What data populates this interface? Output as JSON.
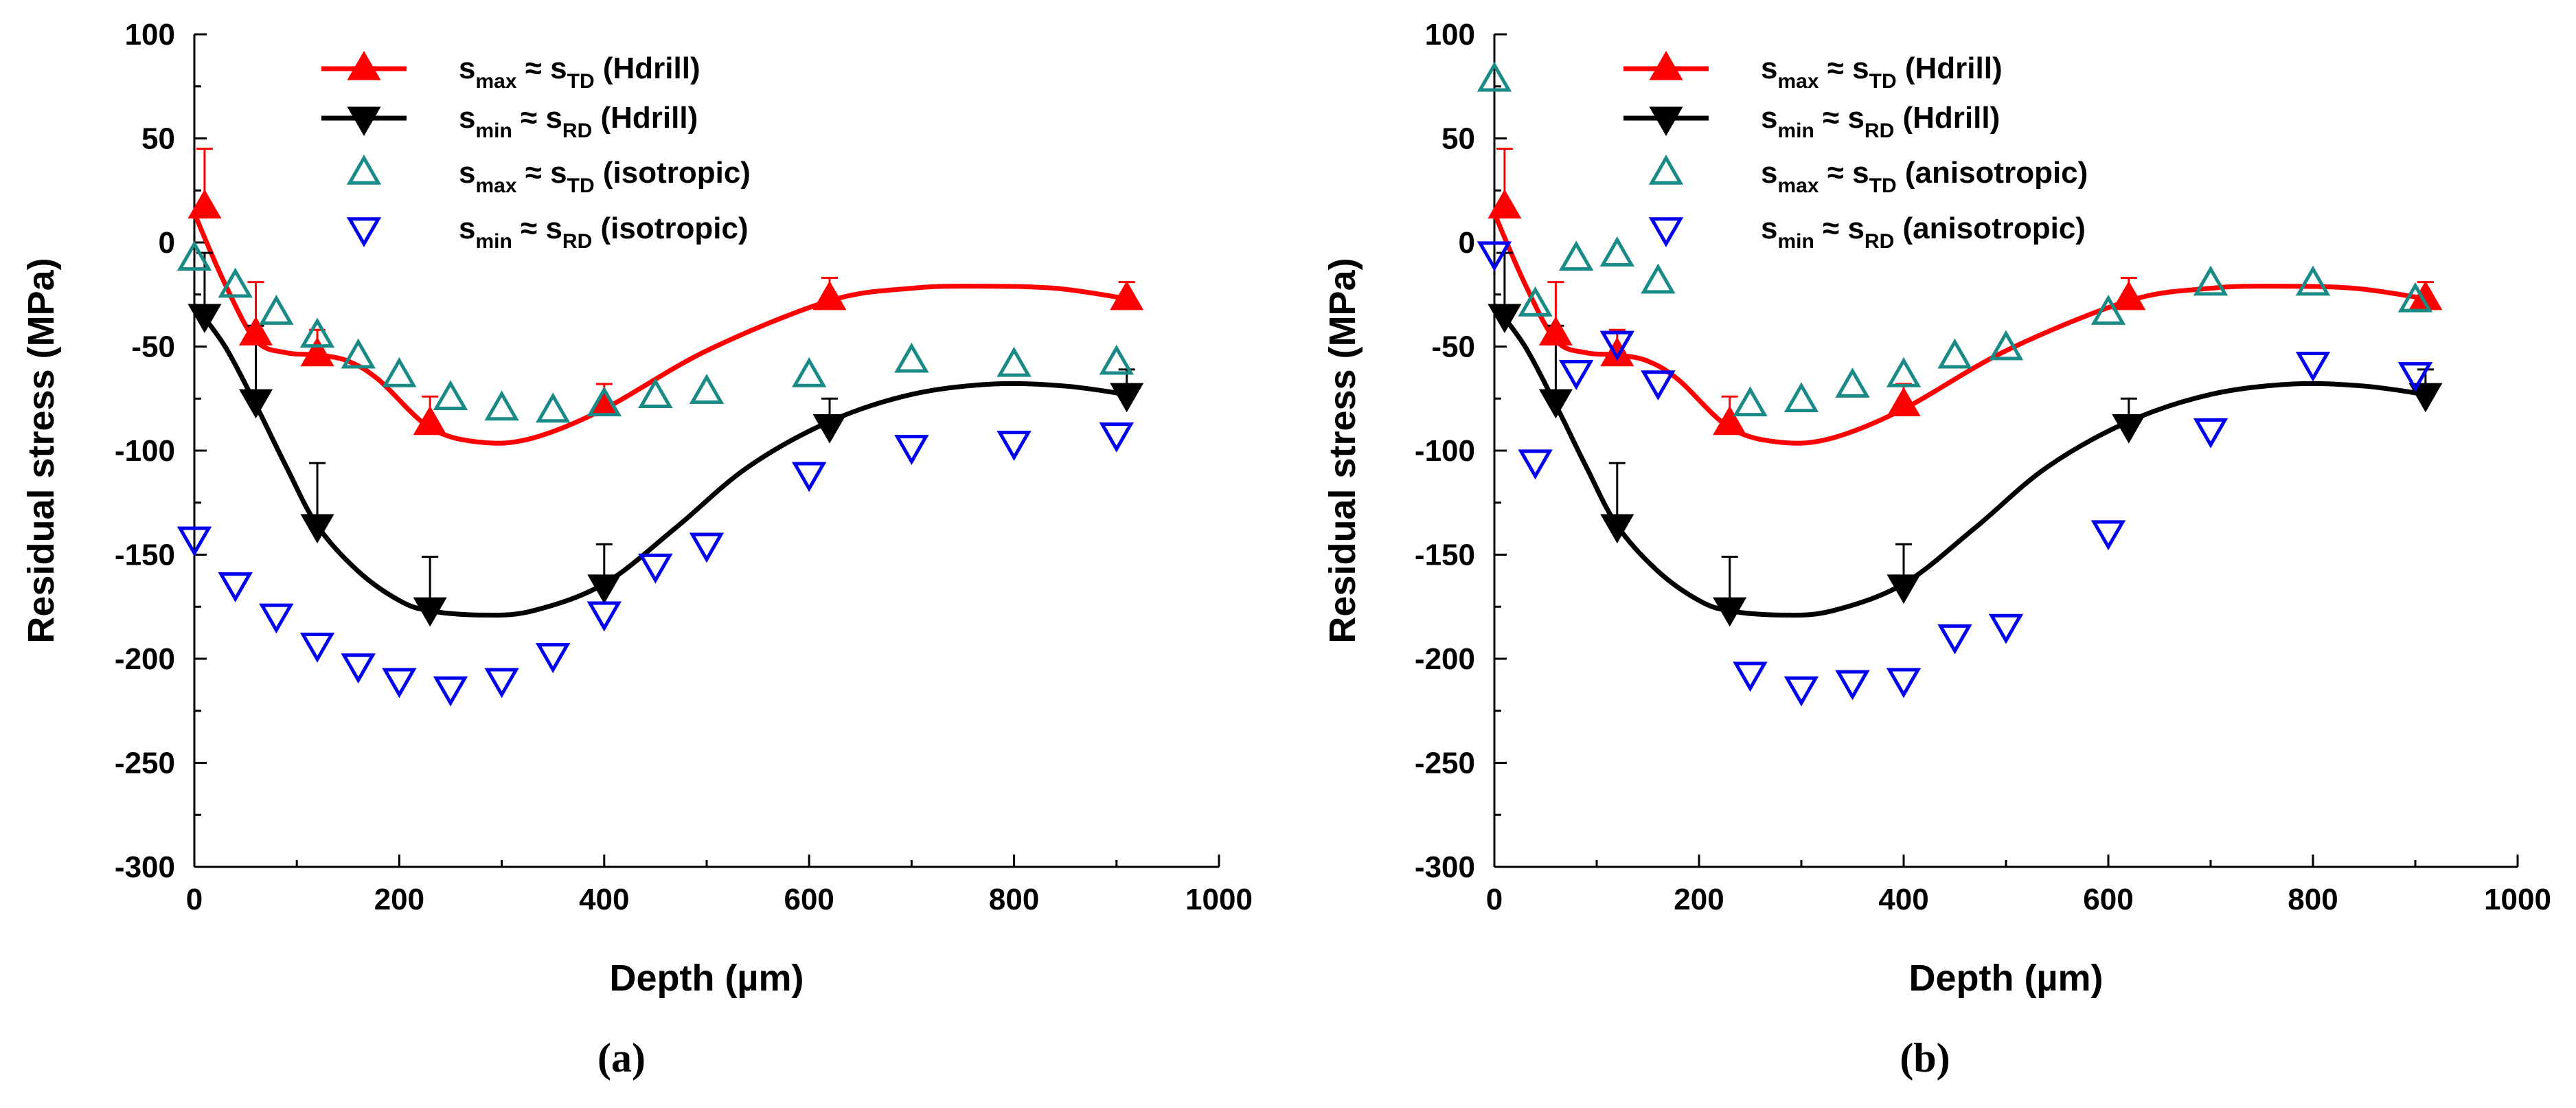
{
  "chart_data": [
    {
      "type": "scatter",
      "caption": "(a)",
      "xlabel": "Depth (µm)",
      "ylabel": "Residual stress (MPa)",
      "xlim": [
        0,
        1000
      ],
      "ylim": [
        -300,
        100
      ],
      "x_ticks": [
        0,
        200,
        400,
        600,
        800,
        1000
      ],
      "y_ticks": [
        100,
        50,
        0,
        -50,
        -100,
        -150,
        -200,
        -250,
        -300
      ],
      "legend_position": "top-center",
      "series": [
        {
          "name": "S_max ≈ S_TD (Hdrill)",
          "legend": {
            "s": "s",
            "sub1": "max",
            "approx": "≈",
            "sub2": "TD",
            "label": "(Hdrill)"
          },
          "marker": "triangle-up",
          "filled": true,
          "color": "#ff0000",
          "line": true,
          "x": [
            10,
            60,
            120,
            230,
            400,
            620,
            910
          ],
          "y": [
            17,
            -44,
            -54,
            -87,
            -78,
            -27,
            -27
          ],
          "err": [
            28,
            25,
            12,
            13,
            10,
            10,
            8
          ],
          "curve_x": [
            0,
            30,
            60,
            90,
            120,
            150,
            180,
            230,
            280,
            330,
            400,
            500,
            620,
            700,
            760,
            840,
            910
          ],
          "curve_y": [
            14,
            -20,
            -47,
            -53,
            -54,
            -57,
            -66,
            -89,
            -96,
            -94,
            -80,
            -52,
            -28,
            -22,
            -21,
            -22,
            -27
          ]
        },
        {
          "name": "S_min ≈ S_RD (Hdrill)",
          "legend": {
            "s": "s",
            "sub1": "min",
            "approx": "≈",
            "sub2": "RD",
            "label": "(Hdrill)"
          },
          "marker": "triangle-down",
          "filled": true,
          "color": "#000000",
          "line": true,
          "x": [
            10,
            60,
            120,
            230,
            400,
            620,
            910
          ],
          "y": [
            -35,
            -76,
            -136,
            -176,
            -165,
            -88,
            -73
          ],
          "err": [
            30,
            36,
            30,
            25,
            20,
            13,
            12
          ],
          "curve_x": [
            0,
            30,
            60,
            90,
            120,
            160,
            200,
            230,
            280,
            330,
            400,
            470,
            540,
            620,
            700,
            780,
            850,
            910
          ],
          "curve_y": [
            -30,
            -50,
            -78,
            -108,
            -136,
            -158,
            -172,
            -177,
            -179,
            -177,
            -164,
            -137,
            -108,
            -86,
            -73,
            -68,
            -69,
            -73
          ]
        },
        {
          "name": "S_max ≈ S_TD (isotropic)",
          "legend": {
            "s": "s",
            "sub1": "max",
            "approx": "≈",
            "sub2": "TD",
            "label": "(isotropic)"
          },
          "marker": "triangle-up",
          "filled": false,
          "color": "#1a8a86",
          "line": false,
          "x": [
            0,
            40,
            80,
            120,
            160,
            200,
            250,
            300,
            350,
            400,
            450,
            500,
            600,
            700,
            800,
            900
          ],
          "y": [
            -8,
            -21,
            -34,
            -45,
            -55,
            -64,
            -75,
            -80,
            -81,
            -78,
            -74,
            -72,
            -64,
            -57,
            -59,
            -58
          ]
        },
        {
          "name": "S_min ≈ S_RD (isotropic)",
          "legend": {
            "s": "s",
            "sub1": "min",
            "approx": "≈",
            "sub2": "RD",
            "label": "(isotropic)"
          },
          "marker": "triangle-down",
          "filled": false,
          "color": "#0000ee",
          "line": false,
          "x": [
            0,
            40,
            80,
            120,
            160,
            200,
            250,
            300,
            350,
            400,
            450,
            500,
            600,
            700,
            800,
            900
          ],
          "y": [
            -142,
            -164,
            -179,
            -193,
            -203,
            -210,
            -214,
            -210,
            -198,
            -178,
            -155,
            -145,
            -111,
            -98,
            -96,
            -92
          ]
        }
      ]
    },
    {
      "type": "scatter",
      "caption": "(b)",
      "xlabel": "Depth (µm)",
      "ylabel": "Residual stress (MPa)",
      "xlim": [
        0,
        1000
      ],
      "ylim": [
        -300,
        100
      ],
      "x_ticks": [
        0,
        200,
        400,
        600,
        800,
        1000
      ],
      "y_ticks": [
        100,
        50,
        0,
        -50,
        -100,
        -150,
        -200,
        -250,
        -300
      ],
      "legend_position": "top-center",
      "series": [
        {
          "name": "S_max ≈ S_TD (Hdrill)",
          "legend": {
            "s": "s",
            "sub1": "max",
            "approx": "≈",
            "sub2": "TD",
            "label": "(Hdrill)"
          },
          "marker": "triangle-up",
          "filled": true,
          "color": "#ff0000",
          "line": true,
          "x": [
            10,
            60,
            120,
            230,
            400,
            620,
            910
          ],
          "y": [
            17,
            -44,
            -54,
            -87,
            -78,
            -27,
            -27
          ],
          "err": [
            28,
            25,
            12,
            13,
            10,
            10,
            8
          ],
          "curve_x": [
            0,
            30,
            60,
            90,
            120,
            150,
            180,
            230,
            280,
            330,
            400,
            500,
            620,
            700,
            760,
            840,
            910
          ],
          "curve_y": [
            14,
            -20,
            -47,
            -53,
            -54,
            -57,
            -66,
            -89,
            -96,
            -94,
            -80,
            -52,
            -28,
            -22,
            -21,
            -22,
            -27
          ]
        },
        {
          "name": "S_min ≈ S_RD (Hdrill)",
          "legend": {
            "s": "s",
            "sub1": "min",
            "approx": "≈",
            "sub2": "RD",
            "label": "(Hdrill)"
          },
          "marker": "triangle-down",
          "filled": true,
          "color": "#000000",
          "line": true,
          "x": [
            10,
            60,
            120,
            230,
            400,
            620,
            910
          ],
          "y": [
            -35,
            -76,
            -136,
            -176,
            -165,
            -88,
            -73
          ],
          "err": [
            30,
            36,
            30,
            25,
            20,
            13,
            12
          ],
          "curve_x": [
            0,
            30,
            60,
            90,
            120,
            160,
            200,
            230,
            280,
            330,
            400,
            470,
            540,
            620,
            700,
            780,
            850,
            910
          ],
          "curve_y": [
            -30,
            -50,
            -78,
            -108,
            -136,
            -158,
            -172,
            -177,
            -179,
            -177,
            -164,
            -137,
            -108,
            -86,
            -73,
            -68,
            -69,
            -73
          ]
        },
        {
          "name": "S_max ≈ S_TD (anisotropic)",
          "legend": {
            "s": "s",
            "sub1": "max",
            "approx": "≈",
            "sub2": "TD",
            "label": "(anisotropic)"
          },
          "marker": "triangle-up",
          "filled": false,
          "color": "#1a8a86",
          "line": false,
          "x": [
            0,
            40,
            80,
            120,
            160,
            250,
            300,
            350,
            400,
            450,
            500,
            600,
            700,
            800,
            900
          ],
          "y": [
            78,
            -30,
            -8,
            -6,
            -19,
            -78,
            -76,
            -69,
            -64,
            -55,
            -51,
            -34,
            -20,
            -20,
            -28
          ]
        },
        {
          "name": "S_min ≈ S_RD (anisotropic)",
          "legend": {
            "s": "s",
            "sub1": "min",
            "approx": "≈",
            "sub2": "RD",
            "label": "(anisotropic)"
          },
          "marker": "triangle-down",
          "filled": false,
          "color": "#0000ee",
          "line": false,
          "x": [
            0,
            40,
            80,
            120,
            160,
            250,
            300,
            350,
            400,
            450,
            500,
            600,
            700,
            800,
            900
          ],
          "y": [
            -5,
            -105,
            -62,
            -48,
            -67,
            -207,
            -214,
            -211,
            -210,
            -189,
            -184,
            -139,
            -90,
            -58,
            -63
          ]
        }
      ]
    }
  ]
}
